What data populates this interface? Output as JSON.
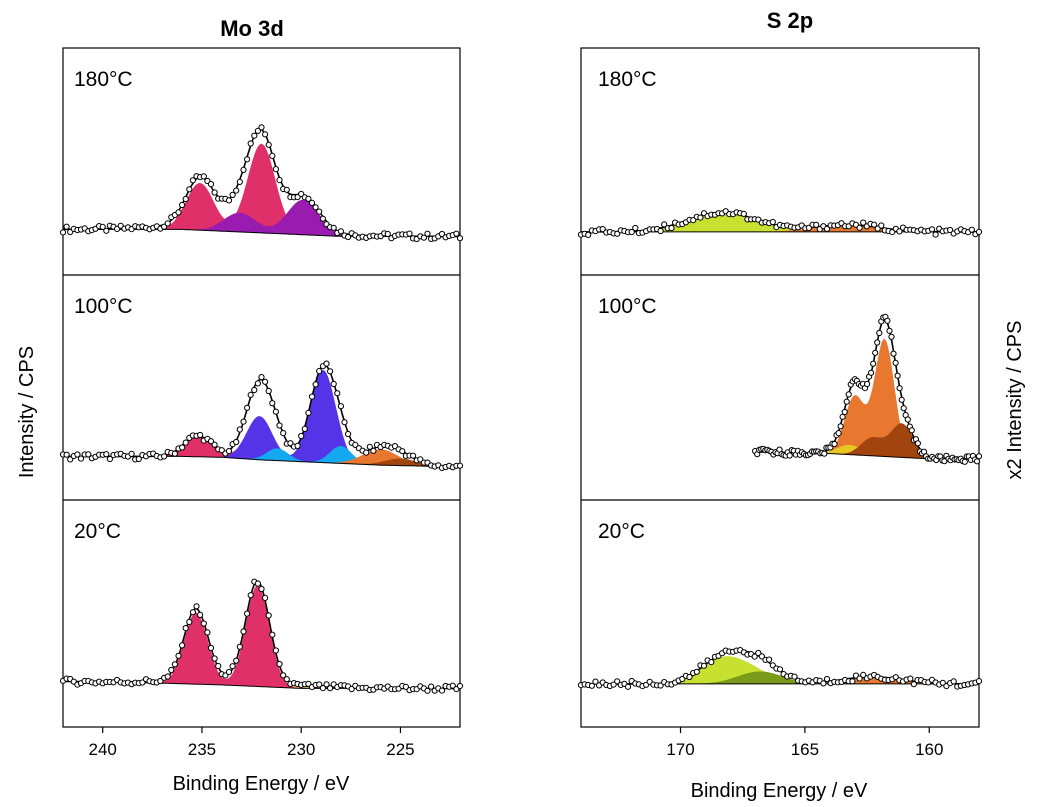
{
  "chart_data": [
    {
      "type": "area",
      "title": "Mo 3d",
      "xlabel": "Binding Energy / eV",
      "ylabel": "Intensity / CPS",
      "xlim": [
        242,
        222
      ],
      "x_reversed": true,
      "xticks": [
        240,
        235,
        230,
        225
      ],
      "yticks": false,
      "panels": [
        {
          "label": "180°C",
          "background": [
            [
              242,
              0.04
            ],
            [
              236,
              0.04
            ],
            [
              234,
              0.03
            ],
            [
              232,
              0.02
            ],
            [
              230,
              0.01
            ],
            [
              228,
              0.0
            ],
            [
              222,
              0.0
            ]
          ],
          "components": [
            {
              "color": "#f0c868",
              "peaks": [
                [
                  232.0,
                  0.025,
                  3.0
                ],
                [
                  235.1,
                  0.015,
                  2.5
                ]
              ]
            },
            {
              "color": "#e0306a",
              "peaks": [
                [
                  235.1,
                  0.27,
                  0.7
                ],
                [
                  232.0,
                  0.51,
                  0.7
                ]
              ]
            },
            {
              "color": "#9a1bb0",
              "peaks": [
                [
                  233.1,
                  0.11,
                  0.8
                ],
                [
                  229.9,
                  0.2,
                  0.8
                ]
              ]
            }
          ]
        },
        {
          "label": "100°C",
          "background": [
            [
              242,
              0.04
            ],
            [
              236,
              0.04
            ],
            [
              234,
              0.035
            ],
            [
              232,
              0.02
            ],
            [
              230,
              0.01
            ],
            [
              226,
              -0.01
            ],
            [
              222,
              -0.02
            ]
          ],
          "components": [
            {
              "color": "#e0306a",
              "peaks": [
                [
                  235.2,
                  0.12,
                  0.7
                ],
                [
                  232.1,
                  0.19,
                  0.7
                ]
              ]
            },
            {
              "color": "#5533e6",
              "peaks": [
                [
                  232.1,
                  0.25,
                  0.65
                ],
                [
                  228.9,
                  0.53,
                  0.65
                ]
              ]
            },
            {
              "color": "#14a8f0",
              "peaks": [
                [
                  231.2,
                  0.07,
                  0.55
                ],
                [
                  228.0,
                  0.1,
                  0.55
                ]
              ]
            },
            {
              "color": "#e87830",
              "peaks": [
                [
                  226.0,
                  0.09,
                  0.9
                ]
              ]
            },
            {
              "color": "#a2440d",
              "peaks": [
                [
                  225.0,
                  0.04,
                  0.8
                ]
              ]
            }
          ]
        },
        {
          "label": "20°C",
          "background": [
            [
              242,
              0.04
            ],
            [
              237,
              0.03
            ],
            [
              234,
              0.02
            ],
            [
              232,
              0.01
            ],
            [
              230,
              0.0
            ],
            [
              222,
              0.0
            ]
          ],
          "components": [
            {
              "color": "#f0c868",
              "peaks": [
                [
                  232.3,
                  0.02,
                  2.6
                ],
                [
                  235.4,
                  0.012,
                  2.0
                ]
              ]
            },
            {
              "color": "#e0306a",
              "peaks": [
                [
                  235.3,
                  0.41,
                  0.6
                ],
                [
                  232.2,
                  0.58,
                  0.6
                ]
              ]
            }
          ]
        }
      ]
    },
    {
      "type": "area",
      "title": "S 2p",
      "xlabel": "Binding Energy / eV",
      "ylabel": "x2 Intensity / CPS",
      "xlim": [
        174,
        158
      ],
      "x_reversed": true,
      "xticks": [
        170,
        165,
        160
      ],
      "yticks": false,
      "panels": [
        {
          "label": "180°C",
          "background": [
            [
              174,
              0.0
            ],
            [
              158,
              0.0
            ]
          ],
          "components": [
            {
              "color": "#c8e030",
              "peaks": [
                [
                  168.3,
                  0.11,
                  1.4
                ]
              ]
            },
            {
              "color": "#e87830",
              "peaks": [
                [
                  163.3,
                  0.04,
                  1.3
                ]
              ]
            }
          ]
        },
        {
          "label": "100°C",
          "background": [
            [
              167,
              0.04
            ],
            [
              164,
              0.03
            ],
            [
              162,
              0.015
            ],
            [
              160,
              0.0
            ],
            [
              158,
              0.0
            ]
          ],
          "components": [
            {
              "color": "#e87830",
              "peaks": [
                [
                  163.0,
                  0.33,
                  0.4
                ],
                [
                  161.8,
                  0.66,
                  0.4
                ]
              ]
            },
            {
              "color": "#e8c820",
              "peaks": [
                [
                  163.2,
                  0.055,
                  0.5
                ]
              ]
            },
            {
              "color": "#a2440d",
              "peaks": [
                [
                  162.3,
                  0.1,
                  0.45
                ],
                [
                  161.1,
                  0.19,
                  0.45
                ]
              ]
            }
          ]
        },
        {
          "label": "20°C",
          "background": [
            [
              174,
              0.0
            ],
            [
              158,
              0.0
            ]
          ],
          "components": [
            {
              "color": "#c8e030",
              "peaks": [
                [
                  168.3,
                  0.14,
                  0.9
                ],
                [
                  167.0,
                  0.05,
                  0.8
                ]
              ]
            },
            {
              "color": "#7a9a1a",
              "peaks": [
                [
                  166.8,
                  0.07,
                  0.9
                ]
              ]
            },
            {
              "color": "#e87830",
              "peaks": [
                [
                  162.3,
                  0.04,
                  1.2
                ]
              ]
            }
          ]
        }
      ]
    }
  ]
}
